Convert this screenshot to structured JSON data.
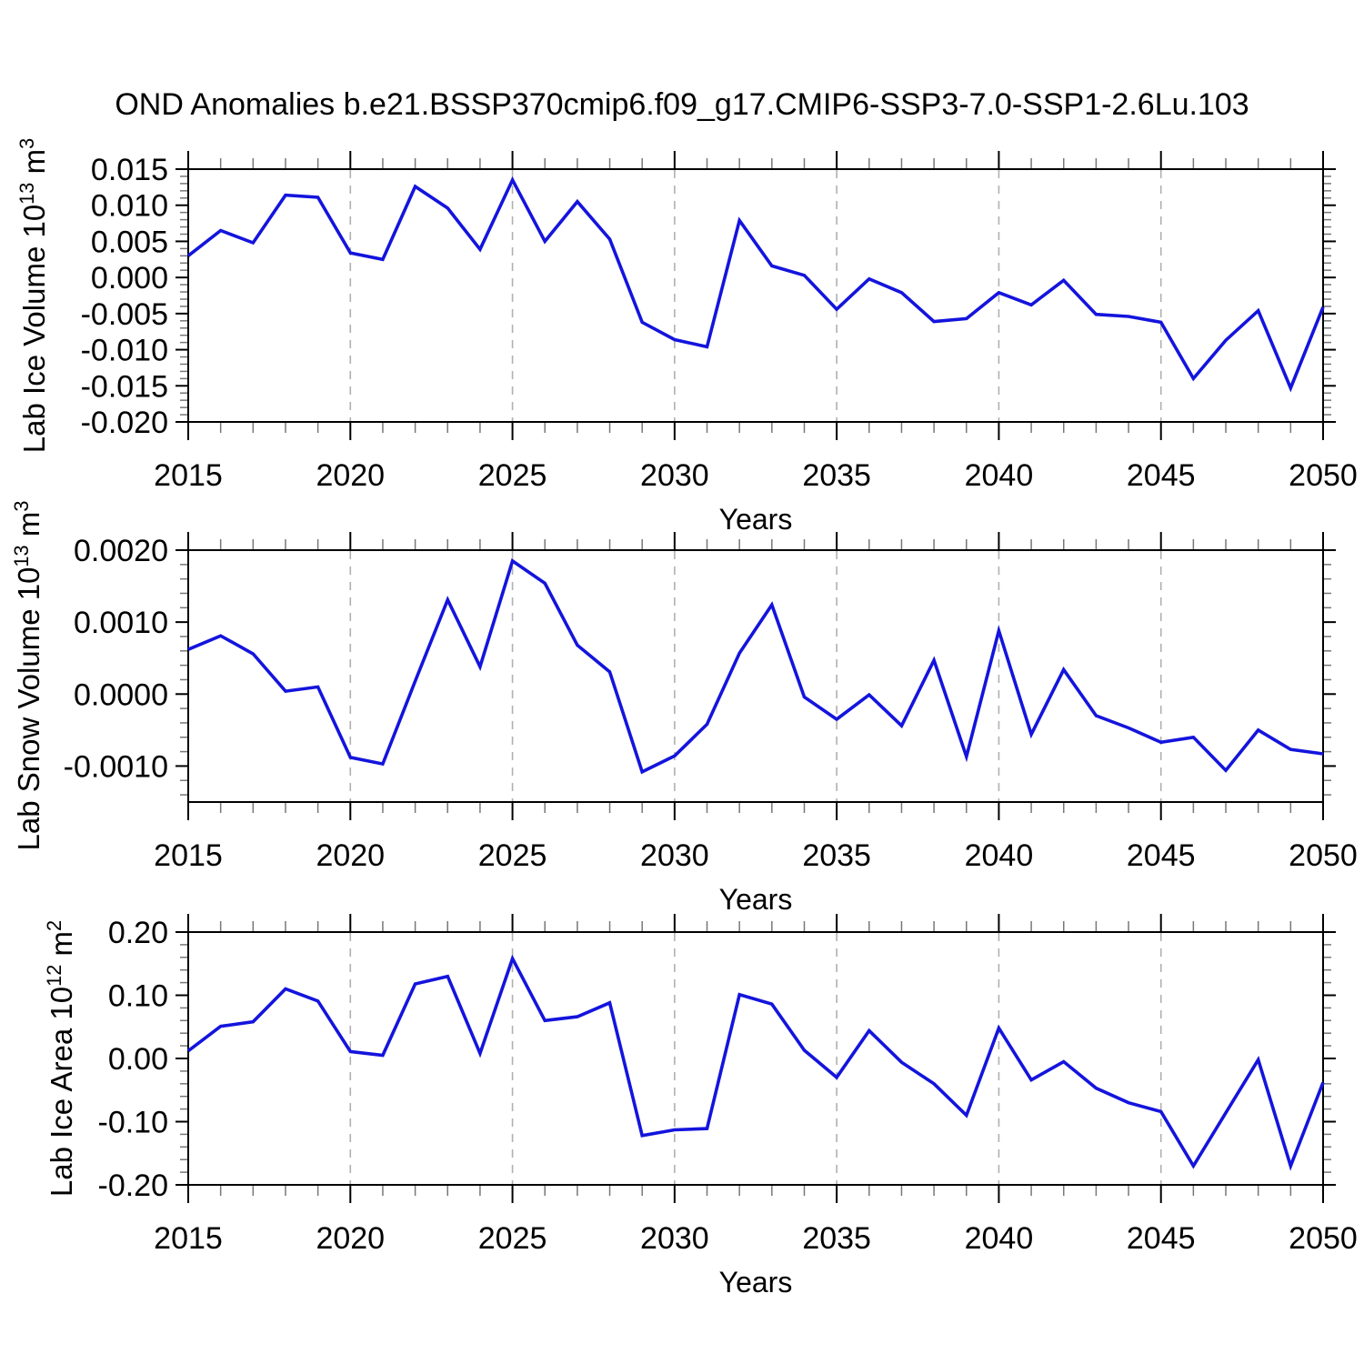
{
  "page": {
    "title": "OND Anomalies b.e21.BSSP370cmip6.f09_g17.CMIP6-SSP3-7.0-SSP1-2.6Lu.103"
  },
  "chart_data": {
    "type": "line",
    "title": "OND Anomalies b.e21.BSSP370cmip6.f09_g17.CMIP6-SSP3-7.0-SSP1-2.6Lu.103",
    "legend": "none",
    "grid": "vertical-dashed",
    "x": [
      2015,
      2016,
      2017,
      2018,
      2019,
      2020,
      2021,
      2022,
      2023,
      2024,
      2025,
      2026,
      2027,
      2028,
      2029,
      2030,
      2031,
      2032,
      2033,
      2034,
      2035,
      2036,
      2037,
      2038,
      2039,
      2040,
      2041,
      2042,
      2043,
      2044,
      2045,
      2046,
      2047,
      2048,
      2049,
      2050
    ],
    "xlim": [
      2015,
      2050
    ],
    "xticks": [
      2015,
      2020,
      2025,
      2030,
      2035,
      2040,
      2045,
      2050
    ],
    "x_minor_step": 1,
    "grid_years": [
      2020,
      2025,
      2030,
      2035,
      2040,
      2045
    ],
    "colors": {
      "line": "#1414dd",
      "grid": "#b0b0b0",
      "axis": "#000000",
      "minor_tick": "#777777",
      "text": "#000000",
      "background": "#ffffff"
    },
    "panels": [
      {
        "id": "lab-ice-volume",
        "ylabel": {
          "main": "Lab Ice Volume 10",
          "exp": "13",
          "unit": " m",
          "unit_exp": "3"
        },
        "xlabel": "Years",
        "ylim": [
          -0.02,
          0.015
        ],
        "y_minor_step": 0.001,
        "yticks": [
          {
            "v": 0.015,
            "label": "0.015"
          },
          {
            "v": 0.01,
            "label": "0.010"
          },
          {
            "v": 0.005,
            "label": "0.005"
          },
          {
            "v": 0.0,
            "label": "0.000"
          },
          {
            "v": -0.005,
            "label": "-0.005"
          },
          {
            "v": -0.01,
            "label": "-0.010"
          },
          {
            "v": -0.015,
            "label": "-0.015"
          },
          {
            "v": -0.02,
            "label": "-0.020"
          }
        ],
        "values": [
          0.003,
          0.0065,
          0.0048,
          0.0114,
          0.0111,
          0.0034,
          0.0025,
          0.0126,
          0.0096,
          0.0039,
          0.0135,
          0.005,
          0.0105,
          0.0053,
          -0.0062,
          -0.0086,
          -0.0096,
          0.0079,
          0.0016,
          0.0003,
          -0.0044,
          -0.0002,
          -0.0021,
          -0.0061,
          -0.0057,
          -0.0021,
          -0.0038,
          -0.0004,
          -0.0051,
          -0.0054,
          -0.0062,
          -0.014,
          -0.0087,
          -0.0046,
          -0.0153,
          -0.0041
        ]
      },
      {
        "id": "lab-snow-volume",
        "ylabel": {
          "main": "Lab Snow Volume 10",
          "exp": "13",
          "unit": " m",
          "unit_exp": "3"
        },
        "xlabel": "Years",
        "ylim": [
          -0.0015,
          0.002
        ],
        "y_minor_step": 0.0002,
        "yticks": [
          {
            "v": 0.002,
            "label": "0.0020"
          },
          {
            "v": 0.001,
            "label": "0.0010"
          },
          {
            "v": 0.0,
            "label": "0.0000"
          },
          {
            "v": -0.001,
            "label": "-0.0010"
          }
        ],
        "values": [
          0.00062,
          0.00081,
          0.00056,
          4e-05,
          0.0001,
          -0.00088,
          -0.00097,
          0.00018,
          0.00131,
          0.00038,
          0.00185,
          0.00154,
          0.00068,
          0.00031,
          -0.00108,
          -0.00086,
          -0.00042,
          0.00057,
          0.00124,
          -4e-05,
          -0.00035,
          -1e-05,
          -0.00044,
          0.00047,
          -0.00087,
          0.00088,
          -0.00056,
          0.00034,
          -0.0003,
          -0.00047,
          -0.00067,
          -0.0006,
          -0.00106,
          -0.0005,
          -0.00077,
          -0.00083
        ]
      },
      {
        "id": "lab-ice-area",
        "ylabel": {
          "main": "Lab Ice Area 10",
          "exp": "12",
          "unit": " m",
          "unit_exp": "2"
        },
        "xlabel": "Years",
        "ylim": [
          -0.2,
          0.2
        ],
        "y_minor_step": 0.02,
        "yticks": [
          {
            "v": 0.2,
            "label": "0.20"
          },
          {
            "v": 0.1,
            "label": "0.10"
          },
          {
            "v": 0.0,
            "label": "0.00"
          },
          {
            "v": -0.1,
            "label": "-0.10"
          },
          {
            "v": -0.2,
            "label": "-0.20"
          }
        ],
        "values": [
          0.012,
          0.051,
          0.058,
          0.11,
          0.091,
          0.011,
          0.005,
          0.118,
          0.13,
          0.008,
          0.158,
          0.06,
          0.066,
          0.088,
          -0.122,
          -0.113,
          -0.111,
          0.101,
          0.086,
          0.013,
          -0.03,
          0.044,
          -0.006,
          -0.04,
          -0.09,
          0.048,
          -0.034,
          -0.005,
          -0.047,
          -0.07,
          -0.084,
          -0.17,
          -0.086,
          -0.002,
          -0.17,
          -0.038
        ]
      }
    ]
  }
}
